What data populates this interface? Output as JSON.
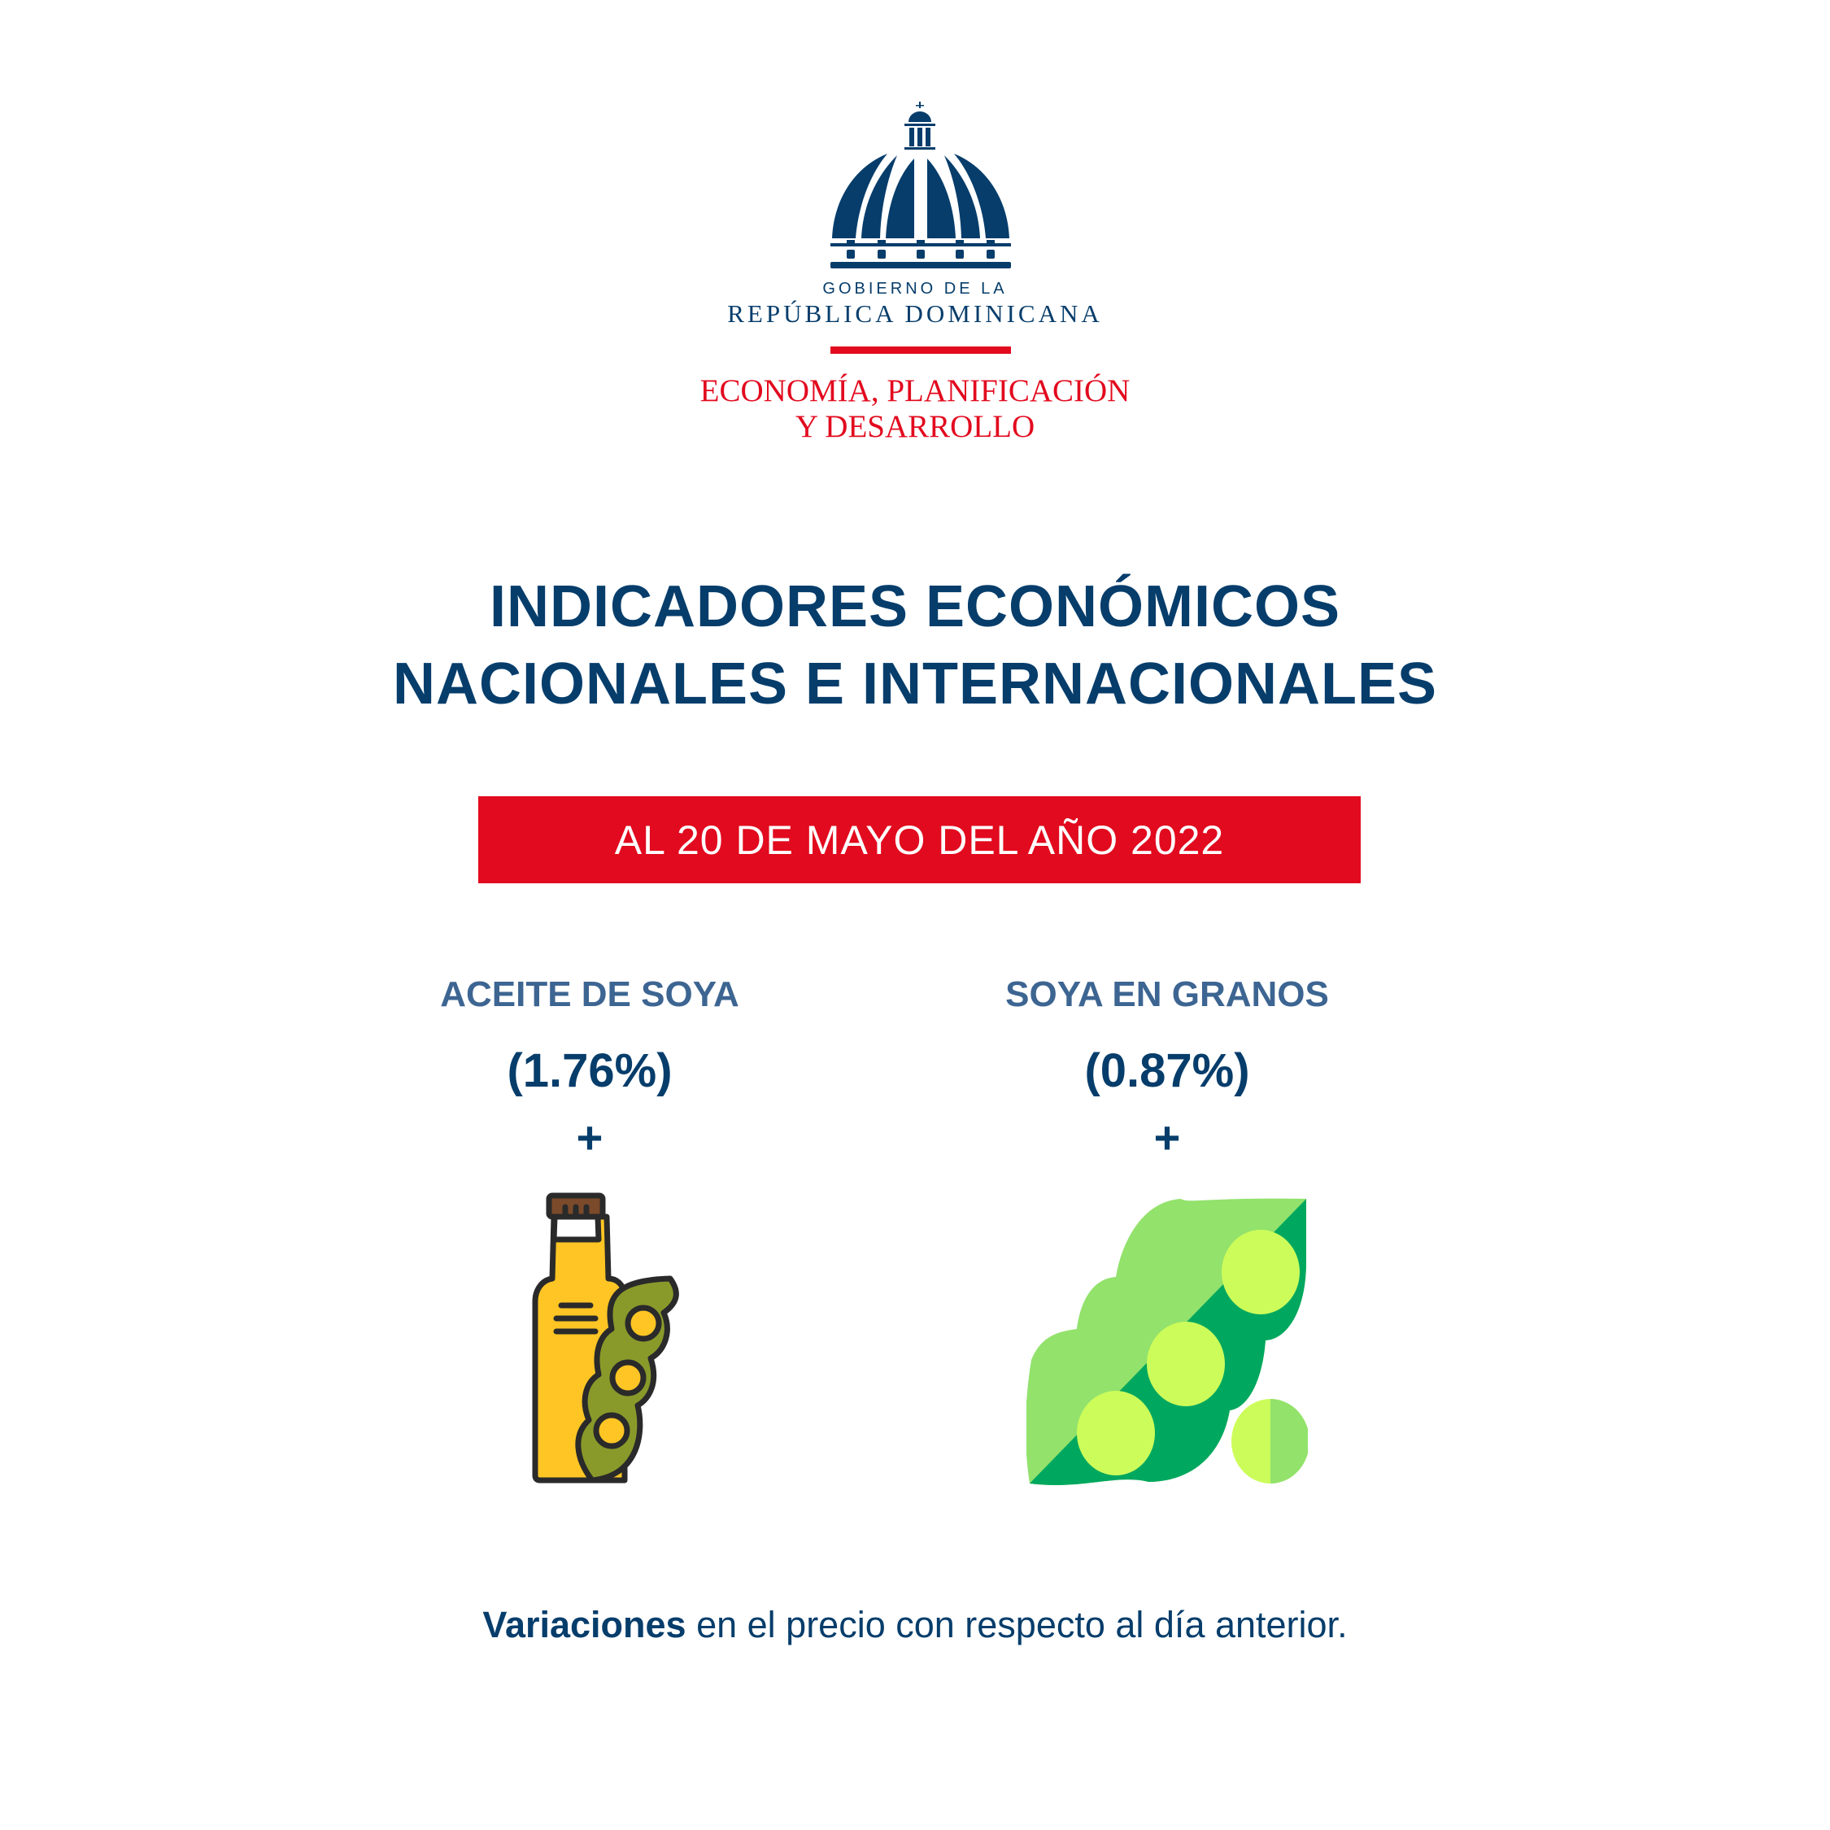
{
  "logo": {
    "line1": "GOBIERNO DE LA",
    "line2": "REPÚBLICA DOMINICANA",
    "ministry_line1": "ECONOMÍA, PLANIFICACIÓN",
    "ministry_line2": "Y DESARROLLO",
    "icon": "capitol-dome-icon"
  },
  "title": {
    "line1": "INDICADORES ECONÓMICOS",
    "line2": "NACIONALES E INTERNACIONALES"
  },
  "date_banner": "AL 20 DE MAYO DEL AÑO 2022",
  "indicators": [
    {
      "name": "ACEITE DE SOYA",
      "value": "(1.76%)",
      "sign": "+",
      "icon": "soybean-oil-bottle-icon"
    },
    {
      "name": "SOYA EN GRANOS",
      "value": "(0.87%)",
      "sign": "+",
      "icon": "soybean-pods-icon"
    }
  ],
  "footer": {
    "bold": "Variaciones",
    "rest": " en el precio con respecto al día anterior."
  },
  "colors": {
    "navy": "#063d6b",
    "red": "#e20a1e",
    "steel_blue": "#3d6592"
  }
}
